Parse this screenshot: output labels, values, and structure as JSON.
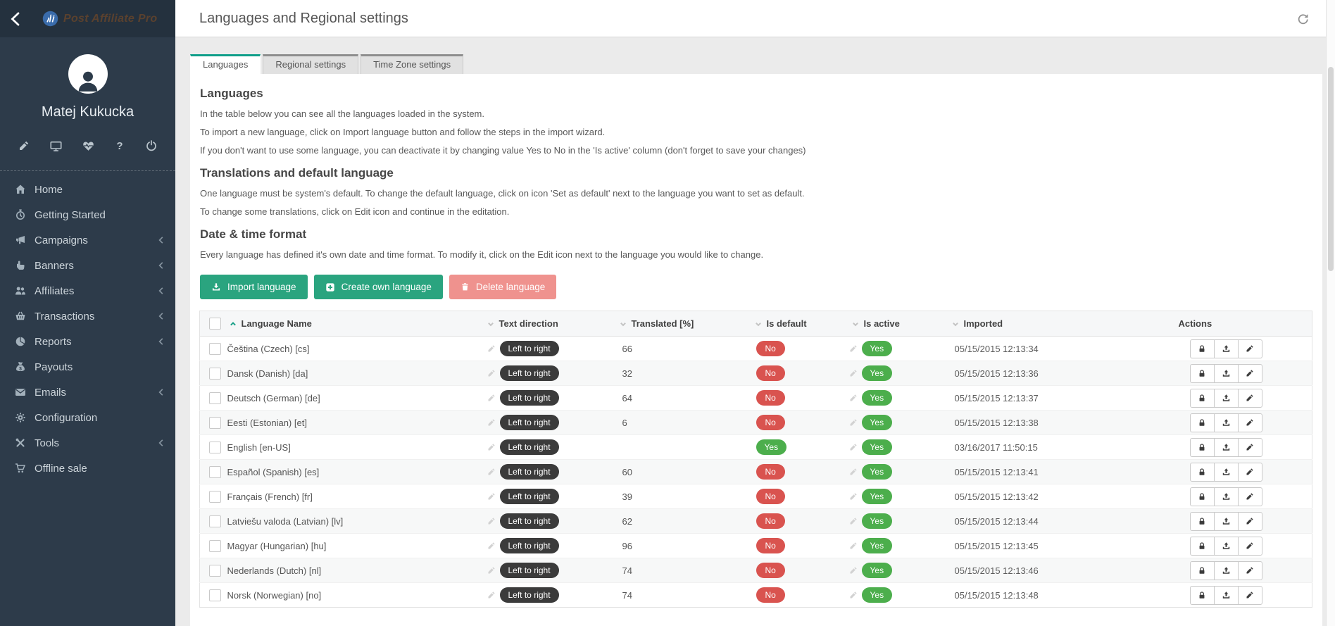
{
  "brand": {
    "logo_text": "Post Affiliate Pro"
  },
  "user": {
    "name": "Matej Kukucka"
  },
  "header": {
    "title": "Languages and Regional settings"
  },
  "tabs": [
    {
      "id": "languages",
      "label": "Languages",
      "active": true
    },
    {
      "id": "regional-settings",
      "label": "Regional settings",
      "active": false
    },
    {
      "id": "timezone-settings",
      "label": "Time Zone settings",
      "active": false
    }
  ],
  "sections": [
    {
      "heading": "Languages",
      "lines": [
        "In the table below you can see all the languages loaded in the system.",
        "To import a new language, click on Import language button and follow the steps in the import wizard.",
        "If you don't want to use some language, you can deactivate it by changing value Yes to No in the 'Is active' column (don't forget to save your changes)"
      ]
    },
    {
      "heading": "Translations and default language",
      "lines": [
        "One language must be system's default. To change the default language, click on icon 'Set as default' next to the language you want to set as default.",
        "To change some translations, click on Edit icon and continue in the editation."
      ]
    },
    {
      "heading": "Date & time format",
      "lines": [
        "Every language has defined it's own date and time format. To modify it, click on the Edit icon next to the language you would like to change."
      ]
    }
  ],
  "toolbar": {
    "buttons": [
      {
        "id": "import-language",
        "label": "Import language",
        "icon": "import-icon",
        "style": "primary"
      },
      {
        "id": "create-own-language",
        "label": "Create own language",
        "icon": "plus-square-icon",
        "style": "primary"
      },
      {
        "id": "delete-language",
        "label": "Delete language",
        "icon": "trash-icon",
        "style": "danger"
      }
    ]
  },
  "sidebar": {
    "items": [
      {
        "id": "home",
        "label": "Home",
        "icon": "home",
        "has_submenu": false
      },
      {
        "id": "getting-started",
        "label": "Getting Started",
        "icon": "clock",
        "has_submenu": false
      },
      {
        "id": "campaigns",
        "label": "Campaigns",
        "icon": "megaphone",
        "has_submenu": true
      },
      {
        "id": "banners",
        "label": "Banners",
        "icon": "pointer",
        "has_submenu": true
      },
      {
        "id": "affiliates",
        "label": "Affiliates",
        "icon": "users",
        "has_submenu": true
      },
      {
        "id": "transactions",
        "label": "Transactions",
        "icon": "basket",
        "has_submenu": true
      },
      {
        "id": "reports",
        "label": "Reports",
        "icon": "pie",
        "has_submenu": true
      },
      {
        "id": "payouts",
        "label": "Payouts",
        "icon": "moneybag",
        "has_submenu": false
      },
      {
        "id": "emails",
        "label": "Emails",
        "icon": "envelope",
        "has_submenu": true
      },
      {
        "id": "configuration",
        "label": "Configuration",
        "icon": "gear",
        "has_submenu": false
      },
      {
        "id": "tools",
        "label": "Tools",
        "icon": "tools",
        "has_submenu": true
      },
      {
        "id": "offline-sale",
        "label": "Offline sale",
        "icon": "cart",
        "has_submenu": false
      }
    ]
  },
  "table": {
    "columns": [
      {
        "id": "language-name",
        "label": "Language Name",
        "sort": "up"
      },
      {
        "id": "text-direction",
        "label": "Text direction",
        "sort": "down"
      },
      {
        "id": "translated",
        "label": "Translated [%]",
        "sort": "down"
      },
      {
        "id": "is-default",
        "label": "Is default",
        "sort": "down"
      },
      {
        "id": "is-active",
        "label": "Is active",
        "sort": "down"
      },
      {
        "id": "imported",
        "label": "Imported",
        "sort": "down"
      },
      {
        "id": "actions",
        "label": "Actions",
        "sort": null
      }
    ],
    "row_actions": [
      "lock",
      "upload",
      "edit"
    ],
    "rows": [
      {
        "name": "Čeština (Czech) [cs]",
        "direction": "Left to right",
        "translated": "66",
        "is_default": "No",
        "is_active": "Yes",
        "imported": "05/15/2015 12:13:34"
      },
      {
        "name": "Dansk (Danish) [da]",
        "direction": "Left to right",
        "translated": "32",
        "is_default": "No",
        "is_active": "Yes",
        "imported": "05/15/2015 12:13:36"
      },
      {
        "name": "Deutsch (German) [de]",
        "direction": "Left to right",
        "translated": "64",
        "is_default": "No",
        "is_active": "Yes",
        "imported": "05/15/2015 12:13:37"
      },
      {
        "name": "Eesti (Estonian) [et]",
        "direction": "Left to right",
        "translated": "6",
        "is_default": "No",
        "is_active": "Yes",
        "imported": "05/15/2015 12:13:38"
      },
      {
        "name": "English [en-US]",
        "direction": "Left to right",
        "translated": "",
        "is_default": "Yes",
        "is_active": "Yes",
        "imported": "03/16/2017 11:50:15"
      },
      {
        "name": "Español (Spanish) [es]",
        "direction": "Left to right",
        "translated": "60",
        "is_default": "No",
        "is_active": "Yes",
        "imported": "05/15/2015 12:13:41"
      },
      {
        "name": "Français (French) [fr]",
        "direction": "Left to right",
        "translated": "39",
        "is_default": "No",
        "is_active": "Yes",
        "imported": "05/15/2015 12:13:42"
      },
      {
        "name": "Latviešu valoda (Latvian) [lv]",
        "direction": "Left to right",
        "translated": "62",
        "is_default": "No",
        "is_active": "Yes",
        "imported": "05/15/2015 12:13:44"
      },
      {
        "name": "Magyar (Hungarian) [hu]",
        "direction": "Left to right",
        "translated": "96",
        "is_default": "No",
        "is_active": "Yes",
        "imported": "05/15/2015 12:13:45"
      },
      {
        "name": "Nederlands (Dutch) [nl]",
        "direction": "Left to right",
        "translated": "74",
        "is_default": "No",
        "is_active": "Yes",
        "imported": "05/15/2015 12:13:46"
      },
      {
        "name": "Norsk (Norwegian) [no]",
        "direction": "Left to right",
        "translated": "74",
        "is_default": "No",
        "is_active": "Yes",
        "imported": "05/15/2015 12:13:48"
      }
    ]
  },
  "colors": {
    "accent_green": "#2aa47f",
    "tab_accent": "#0f9e89",
    "danger_red": "#d9534f",
    "success_green": "#4cae4c",
    "delete_button_pink": "#ef928e",
    "dark_pill": "#3b3b3b",
    "sidebar_bg": "#2d3b4a",
    "sidebar_top_bg": "#24313e"
  }
}
